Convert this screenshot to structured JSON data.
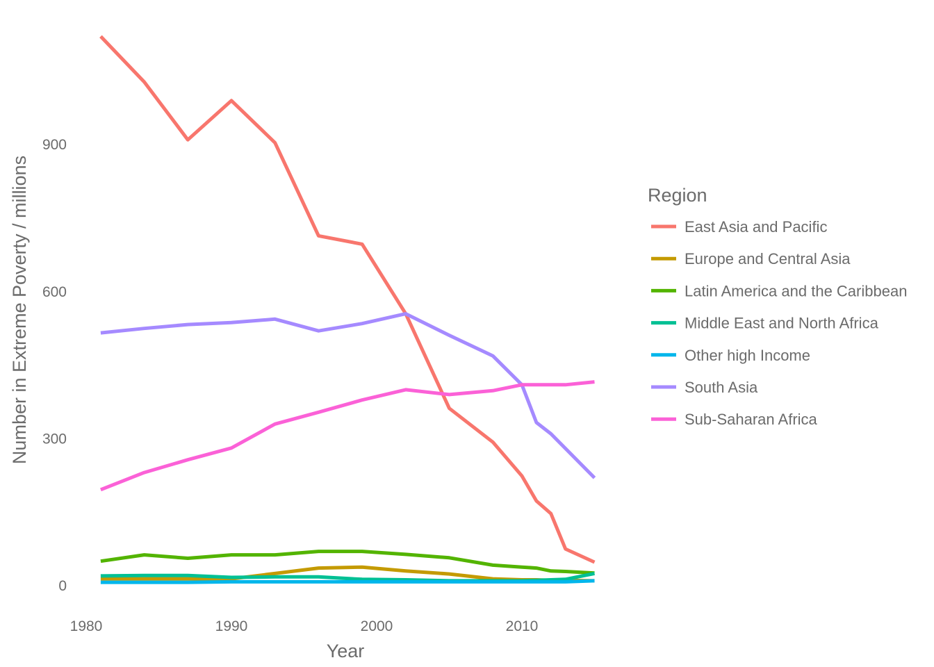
{
  "chart_data": {
    "type": "line",
    "title": "",
    "xlabel": "Year",
    "ylabel": "Number in Extreme Poverty / millions",
    "xlim": [
      1980,
      2015
    ],
    "ylim": [
      0,
      1120
    ],
    "x_ticks": [
      1980,
      1990,
      2000,
      2010
    ],
    "y_ticks": [
      0,
      300,
      600,
      900
    ],
    "grid": false,
    "legend": {
      "title": "Region",
      "position": "right"
    },
    "x": [
      1981,
      1984,
      1987,
      1990,
      1993,
      1996,
      1999,
      2002,
      2005,
      2008,
      2010,
      2011,
      2012,
      2013,
      2015
    ],
    "series": [
      {
        "name": "East Asia and Pacific",
        "color": "#F8766D",
        "values": [
          1121,
          1028,
          910,
          990,
          904,
          714,
          697,
          555,
          362,
          293,
          224,
          173,
          147,
          75,
          48
        ]
      },
      {
        "name": "Europe and Central Asia",
        "color": "#C49A00",
        "values": [
          14,
          14,
          14,
          14,
          25,
          36,
          38,
          30,
          24,
          14,
          12,
          12,
          11,
          11,
          10
        ]
      },
      {
        "name": "Latin America and the Caribbean",
        "color": "#53B400",
        "values": [
          50,
          63,
          56,
          63,
          63,
          70,
          70,
          64,
          57,
          42,
          38,
          36,
          30,
          29,
          26
        ]
      },
      {
        "name": "Middle East and North Africa",
        "color": "#00C094",
        "values": [
          20,
          21,
          21,
          17,
          18,
          18,
          13,
          12,
          10,
          10,
          10,
          11,
          12,
          13,
          25
        ]
      },
      {
        "name": "Other high Income",
        "color": "#00B6EB",
        "values": [
          7,
          7,
          7,
          8,
          8,
          8,
          8,
          8,
          8,
          8,
          8,
          8,
          8,
          8,
          10
        ]
      },
      {
        "name": "South Asia",
        "color": "#A58AFF",
        "values": [
          516,
          525,
          533,
          537,
          544,
          520,
          535,
          555,
          511,
          469,
          410,
          333,
          310,
          280,
          220
        ]
      },
      {
        "name": "Sub-Saharan Africa",
        "color": "#FB61D7",
        "values": [
          196,
          231,
          257,
          281,
          330,
          354,
          379,
          400,
          390,
          398,
          410,
          410,
          410,
          410,
          416
        ]
      }
    ]
  }
}
